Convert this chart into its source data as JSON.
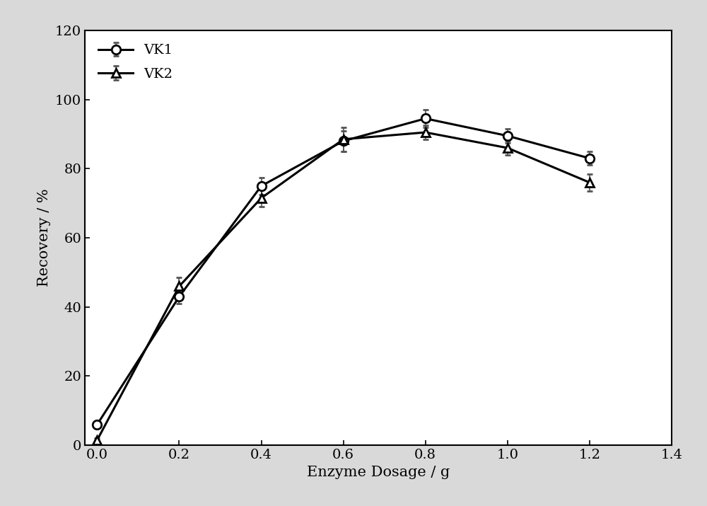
{
  "vk1_x": [
    0.0,
    0.2,
    0.4,
    0.6,
    0.8,
    1.0,
    1.2
  ],
  "vk1_y": [
    6.0,
    43.0,
    75.0,
    88.0,
    94.5,
    89.5,
    83.0
  ],
  "vk1_yerr": [
    0.5,
    2.0,
    2.5,
    3.0,
    2.5,
    2.0,
    2.0
  ],
  "vk2_x": [
    0.0,
    0.2,
    0.4,
    0.6,
    0.8,
    1.0,
    1.2
  ],
  "vk2_y": [
    1.5,
    46.0,
    71.5,
    88.5,
    90.5,
    86.0,
    76.0
  ],
  "vk2_yerr": [
    0.5,
    2.5,
    2.5,
    3.5,
    2.0,
    2.0,
    2.5
  ],
  "xlabel": "Enzyme Dosage / g",
  "ylabel": "Recovery / %",
  "xlim": [
    -0.03,
    1.4
  ],
  "ylim": [
    0,
    120
  ],
  "yticks": [
    0,
    20,
    40,
    60,
    80,
    100,
    120
  ],
  "xticks": [
    0.0,
    0.2,
    0.4,
    0.6,
    0.8,
    1.0,
    1.2,
    1.4
  ],
  "line_color": "#000000",
  "marker_size": 9,
  "linewidth": 2.2,
  "legend_labels": [
    "VK1",
    "VK2"
  ],
  "label_fontsize": 15,
  "tick_fontsize": 14,
  "legend_fontsize": 14,
  "capsize": 3,
  "outer_bg": "#d9d9d9",
  "inner_bg": "#ffffff"
}
